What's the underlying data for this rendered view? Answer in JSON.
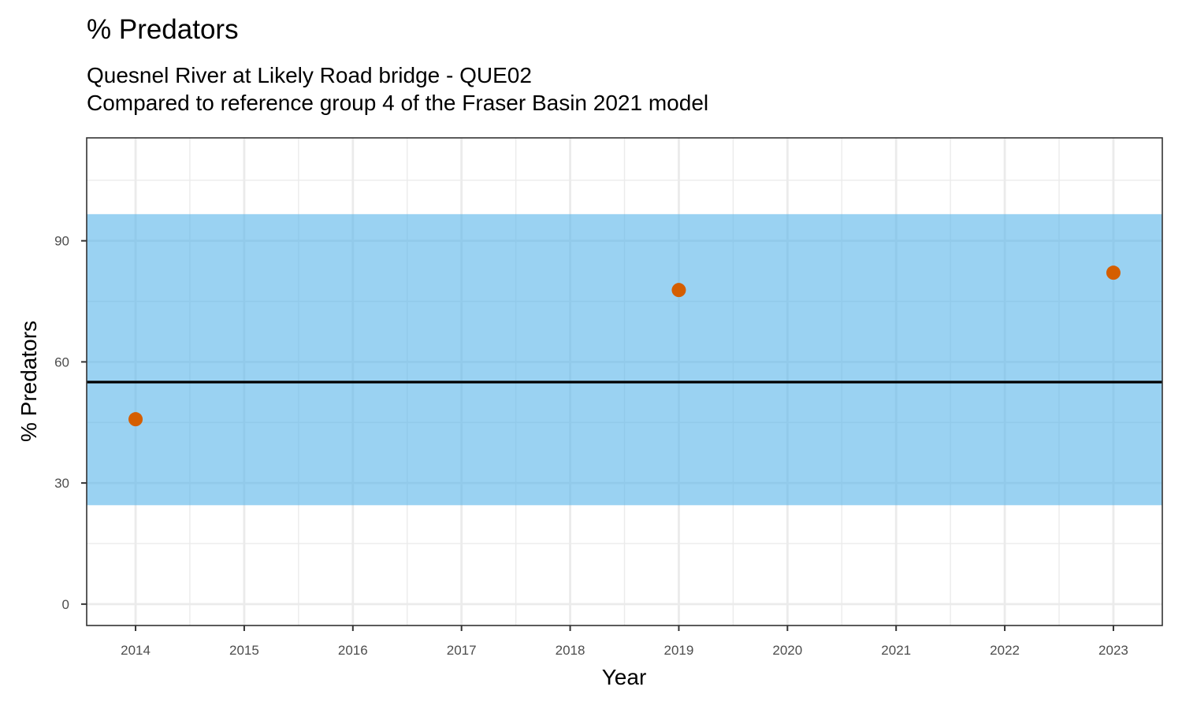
{
  "chart_data": {
    "type": "scatter",
    "title": "% Predators",
    "subtitle_lines": [
      "Quesnel River at Likely Road bridge - QUE02",
      "Compared to reference group 4 of the Fraser Basin 2021 model"
    ],
    "xlabel": "Year",
    "ylabel": "% Predators",
    "x_ticks": [
      "2014",
      "2015",
      "2016",
      "2017",
      "2018",
      "2019",
      "2020",
      "2021",
      "2022",
      "2023"
    ],
    "y_ticks": [
      "0",
      "30",
      "60",
      "90"
    ],
    "xlim": [
      2013.55,
      2023.45
    ],
    "ylim": [
      -5.3,
      115.5
    ],
    "grid": true,
    "reference_band": {
      "lower": 24.5,
      "upper": 96.6,
      "color": "#56b4e9"
    },
    "reference_line": {
      "value": 55.0,
      "color": "#000000"
    },
    "series": [
      {
        "color": "#d55e00",
        "points": [
          {
            "x": 2014,
            "y": 45.8
          },
          {
            "x": 2019,
            "y": 77.8
          },
          {
            "x": 2023,
            "y": 82.1
          }
        ]
      }
    ]
  }
}
